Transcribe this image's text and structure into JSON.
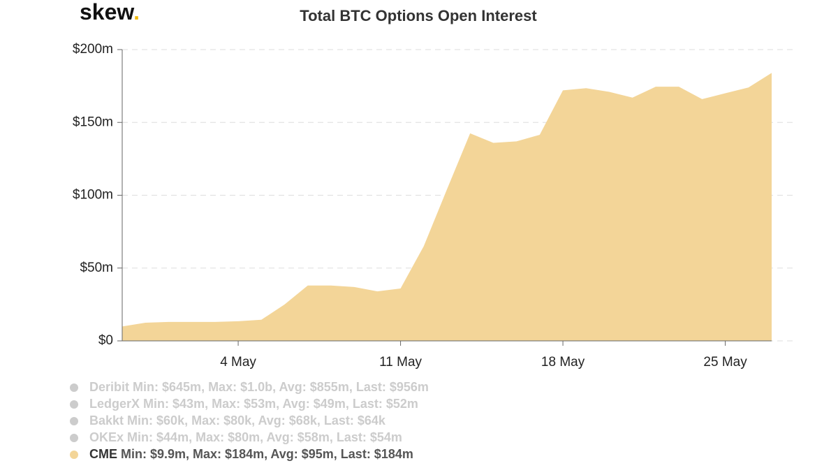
{
  "brand": {
    "name": "skew",
    "dot": "."
  },
  "chart_data": {
    "type": "area",
    "title": "Total BTC Options Open Interest",
    "categories": [
      null,
      null,
      null,
      null,
      null,
      "4 May",
      null,
      null,
      null,
      null,
      null,
      null,
      "11 May",
      null,
      null,
      null,
      null,
      null,
      null,
      "18 May",
      null,
      null,
      null,
      null,
      null,
      null,
      "25 May",
      null,
      null
    ],
    "series": [
      {
        "name": "CME",
        "color": "#f3d598",
        "stats": "Min: $9.9m, Max: $184m, Avg: $95m, Last: $184m",
        "values": [
          9.9,
          12.5,
          13,
          13,
          13,
          13.5,
          14.5,
          25,
          38,
          38,
          37,
          34,
          36,
          65,
          104,
          142.5,
          136,
          137,
          141.5,
          172,
          173.5,
          171,
          167,
          174.5,
          174.5,
          166,
          170,
          174,
          184
        ]
      }
    ],
    "hidden_series": [
      {
        "name": "Deribit",
        "color": "#cccccc",
        "stats": "Min: $645m, Max: $1.0b, Avg: $855m, Last: $956m"
      },
      {
        "name": "LedgerX",
        "color": "#cccccc",
        "stats": "Min: $43m, Max: $53m, Avg: $49m, Last: $52m"
      },
      {
        "name": "Bakkt",
        "color": "#cccccc",
        "stats": "Min: $60k, Max: $80k, Avg: $68k, Last: $64k"
      },
      {
        "name": "OKEx",
        "color": "#cccccc",
        "stats": "Min: $44m, Max: $80m, Avg: $58m, Last: $54m"
      }
    ],
    "ylim": [
      0,
      200
    ],
    "yticks": [
      {
        "value": 0,
        "label": "$0"
      },
      {
        "value": 50,
        "label": "$50m"
      },
      {
        "value": 100,
        "label": "$100m"
      },
      {
        "value": 150,
        "label": "$150m"
      },
      {
        "value": 200,
        "label": "$200m"
      }
    ],
    "grid": true
  }
}
